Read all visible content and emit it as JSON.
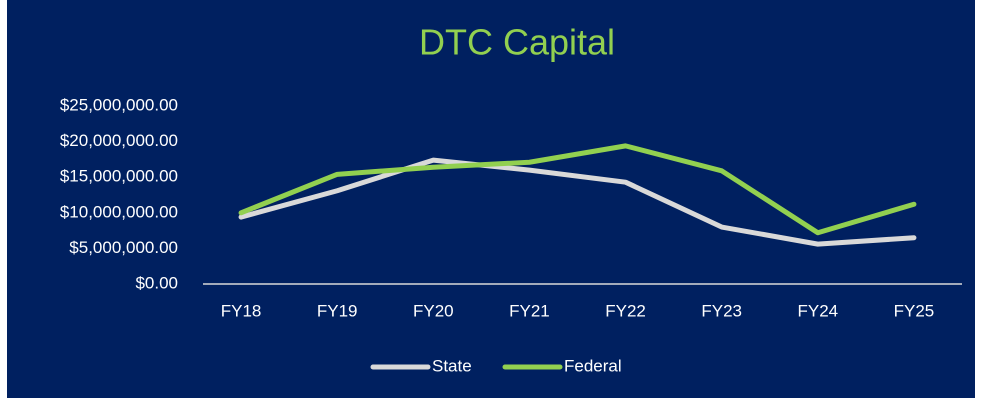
{
  "chart_data": {
    "type": "line",
    "title": "DTC Capital",
    "categories": [
      "FY18",
      "FY19",
      "FY20",
      "FY21",
      "FY22",
      "FY23",
      "FY24",
      "FY25"
    ],
    "series": [
      {
        "name": "State",
        "color": "#d9d9d9",
        "values": [
          9400000,
          13100000,
          17400000,
          16000000,
          14300000,
          8000000,
          5600000,
          6500000
        ]
      },
      {
        "name": "Federal",
        "color": "#92d050",
        "values": [
          10000000,
          15400000,
          16400000,
          17100000,
          19400000,
          15900000,
          7200000,
          11200000
        ]
      }
    ],
    "ylim": [
      0,
      25000000
    ],
    "yticks": [
      {
        "value": 0,
        "label": "$0.00"
      },
      {
        "value": 5000000,
        "label": "$5,000,000.00"
      },
      {
        "value": 10000000,
        "label": "$10,000,000.00"
      },
      {
        "value": 15000000,
        "label": "$15,000,000.00"
      },
      {
        "value": 20000000,
        "label": "$20,000,000.00"
      },
      {
        "value": 25000000,
        "label": "$25,000,000.00"
      }
    ],
    "grid": false,
    "legend": "bottom"
  }
}
